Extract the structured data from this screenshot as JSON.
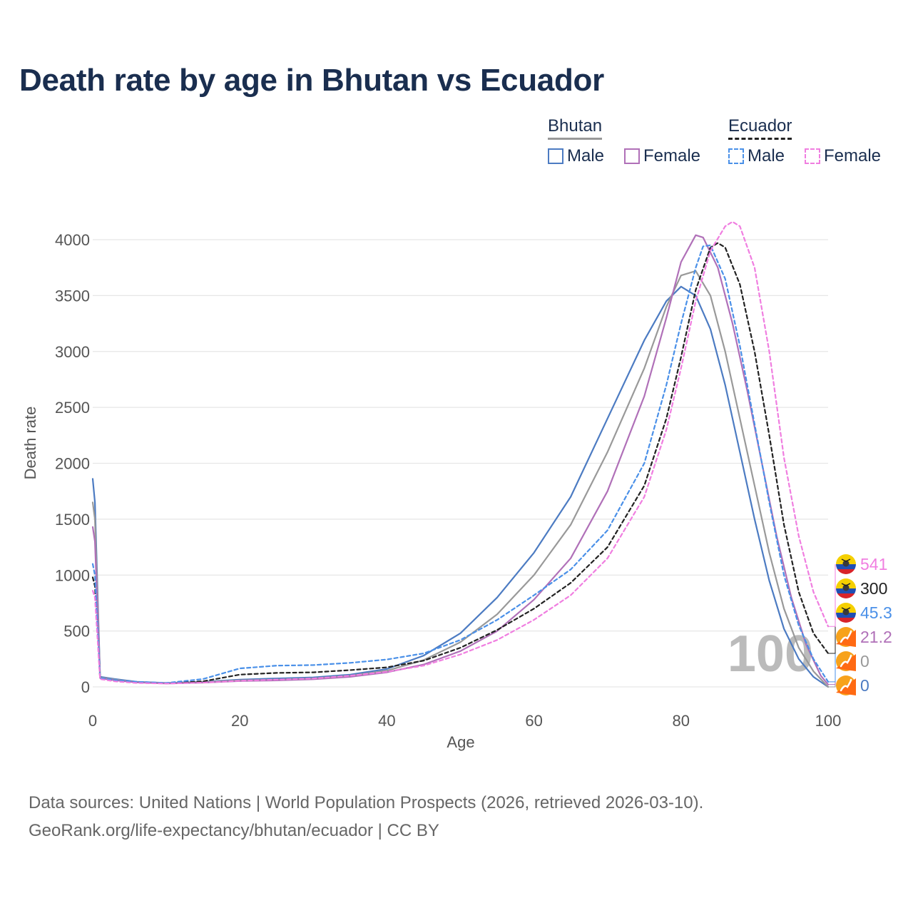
{
  "title": "Death rate by age in Bhutan vs Ecuador",
  "legend": {
    "groups": [
      {
        "name": "Bhutan",
        "items": [
          {
            "label": "Male",
            "color": "#4c7bc2",
            "dash": false
          },
          {
            "label": "Female",
            "color": "#b070b8",
            "dash": false
          }
        ]
      },
      {
        "name": "Ecuador",
        "items": [
          {
            "label": "Male",
            "color": "#4a90e8",
            "dash": true
          },
          {
            "label": "Female",
            "color": "#f07ee0",
            "dash": true
          }
        ]
      }
    ]
  },
  "source": {
    "line1": "Data sources: United Nations | World Population Prospects (2026, retrieved 2026-03-10).",
    "line2": "GeoRank.org/life-expectancy/bhutan/ecuador | CC BY"
  },
  "chart_data": {
    "type": "line",
    "title": "Death rate by age in Bhutan vs Ecuador",
    "xlabel": "Age",
    "ylabel": "Death rate",
    "xlim": [
      0,
      100
    ],
    "ylim": [
      0,
      4000
    ],
    "xticks": [
      0,
      20,
      40,
      60,
      80,
      100
    ],
    "yticks": [
      0,
      500,
      1000,
      1500,
      2000,
      2500,
      3000,
      3500,
      4000
    ],
    "grid": true,
    "watermark": "100",
    "series": [
      {
        "name": "Bhutan Male",
        "color": "#4c7bc2",
        "dash": false,
        "end_label": "0",
        "points": [
          [
            0,
            1860
          ],
          [
            0.3,
            1650
          ],
          [
            1,
            90
          ],
          [
            3,
            70
          ],
          [
            6,
            45
          ],
          [
            10,
            35
          ],
          [
            15,
            45
          ],
          [
            20,
            65
          ],
          [
            25,
            75
          ],
          [
            30,
            85
          ],
          [
            35,
            110
          ],
          [
            40,
            160
          ],
          [
            45,
            280
          ],
          [
            50,
            480
          ],
          [
            55,
            800
          ],
          [
            60,
            1200
          ],
          [
            65,
            1700
          ],
          [
            70,
            2400
          ],
          [
            75,
            3100
          ],
          [
            78,
            3450
          ],
          [
            80,
            3580
          ],
          [
            82,
            3500
          ],
          [
            84,
            3200
          ],
          [
            86,
            2700
          ],
          [
            88,
            2100
          ],
          [
            90,
            1500
          ],
          [
            92,
            950
          ],
          [
            94,
            520
          ],
          [
            96,
            250
          ],
          [
            98,
            90
          ],
          [
            100,
            0
          ]
        ]
      },
      {
        "name": "Bhutan Both",
        "color": "#999999",
        "dash": false,
        "end_label": "0",
        "points": [
          [
            0,
            1650
          ],
          [
            0.3,
            1500
          ],
          [
            1,
            85
          ],
          [
            3,
            65
          ],
          [
            6,
            42
          ],
          [
            10,
            33
          ],
          [
            15,
            42
          ],
          [
            20,
            58
          ],
          [
            25,
            65
          ],
          [
            30,
            75
          ],
          [
            35,
            100
          ],
          [
            40,
            145
          ],
          [
            45,
            240
          ],
          [
            50,
            400
          ],
          [
            55,
            650
          ],
          [
            60,
            1000
          ],
          [
            65,
            1450
          ],
          [
            70,
            2100
          ],
          [
            75,
            2850
          ],
          [
            78,
            3400
          ],
          [
            80,
            3680
          ],
          [
            82,
            3720
          ],
          [
            84,
            3500
          ],
          [
            86,
            3000
          ],
          [
            88,
            2400
          ],
          [
            90,
            1800
          ],
          [
            92,
            1200
          ],
          [
            94,
            700
          ],
          [
            96,
            350
          ],
          [
            98,
            140
          ],
          [
            100,
            0
          ]
        ]
      },
      {
        "name": "Bhutan Female",
        "color": "#b070b8",
        "dash": false,
        "end_label": "21.2",
        "points": [
          [
            0,
            1430
          ],
          [
            0.3,
            1300
          ],
          [
            1,
            80
          ],
          [
            3,
            60
          ],
          [
            6,
            40
          ],
          [
            10,
            30
          ],
          [
            15,
            38
          ],
          [
            20,
            52
          ],
          [
            25,
            58
          ],
          [
            30,
            68
          ],
          [
            35,
            90
          ],
          [
            40,
            130
          ],
          [
            45,
            200
          ],
          [
            50,
            320
          ],
          [
            55,
            500
          ],
          [
            60,
            780
          ],
          [
            65,
            1150
          ],
          [
            70,
            1750
          ],
          [
            75,
            2600
          ],
          [
            78,
            3300
          ],
          [
            80,
            3800
          ],
          [
            82,
            4040
          ],
          [
            83,
            4020
          ],
          [
            85,
            3750
          ],
          [
            87,
            3250
          ],
          [
            89,
            2650
          ],
          [
            91,
            2000
          ],
          [
            93,
            1350
          ],
          [
            95,
            800
          ],
          [
            97,
            380
          ],
          [
            99,
            100
          ],
          [
            100,
            21.2
          ]
        ]
      },
      {
        "name": "Ecuador Both",
        "color": "#222222",
        "dash": true,
        "end_label": "300",
        "points": [
          [
            0,
            980
          ],
          [
            0.3,
            900
          ],
          [
            1,
            75
          ],
          [
            3,
            55
          ],
          [
            6,
            40
          ],
          [
            10,
            32
          ],
          [
            15,
            50
          ],
          [
            20,
            110
          ],
          [
            25,
            125
          ],
          [
            30,
            130
          ],
          [
            35,
            150
          ],
          [
            40,
            175
          ],
          [
            45,
            235
          ],
          [
            50,
            350
          ],
          [
            55,
            510
          ],
          [
            60,
            700
          ],
          [
            65,
            930
          ],
          [
            70,
            1250
          ],
          [
            75,
            1800
          ],
          [
            78,
            2400
          ],
          [
            80,
            2950
          ],
          [
            82,
            3550
          ],
          [
            84,
            3930
          ],
          [
            85,
            3970
          ],
          [
            86,
            3930
          ],
          [
            88,
            3600
          ],
          [
            90,
            3000
          ],
          [
            92,
            2250
          ],
          [
            94,
            1450
          ],
          [
            96,
            850
          ],
          [
            98,
            480
          ],
          [
            100,
            300
          ]
        ]
      },
      {
        "name": "Ecuador Male",
        "color": "#4a90e8",
        "dash": true,
        "end_label": "45.3",
        "points": [
          [
            0,
            1100
          ],
          [
            0.3,
            1000
          ],
          [
            1,
            80
          ],
          [
            3,
            60
          ],
          [
            6,
            45
          ],
          [
            10,
            35
          ],
          [
            15,
            70
          ],
          [
            20,
            165
          ],
          [
            25,
            190
          ],
          [
            30,
            195
          ],
          [
            35,
            215
          ],
          [
            40,
            245
          ],
          [
            45,
            300
          ],
          [
            50,
            420
          ],
          [
            55,
            600
          ],
          [
            60,
            820
          ],
          [
            65,
            1050
          ],
          [
            70,
            1400
          ],
          [
            75,
            2000
          ],
          [
            78,
            2700
          ],
          [
            80,
            3250
          ],
          [
            82,
            3750
          ],
          [
            83,
            3940
          ],
          [
            84,
            3950
          ],
          [
            86,
            3650
          ],
          [
            88,
            3050
          ],
          [
            90,
            2350
          ],
          [
            92,
            1650
          ],
          [
            94,
            1000
          ],
          [
            96,
            550
          ],
          [
            98,
            250
          ],
          [
            100,
            45.3
          ]
        ]
      },
      {
        "name": "Ecuador Female",
        "color": "#f07ee0",
        "dash": true,
        "end_label": "541",
        "points": [
          [
            0,
            860
          ],
          [
            0.3,
            800
          ],
          [
            1,
            70
          ],
          [
            3,
            50
          ],
          [
            6,
            35
          ],
          [
            10,
            30
          ],
          [
            15,
            38
          ],
          [
            20,
            55
          ],
          [
            25,
            65
          ],
          [
            30,
            75
          ],
          [
            35,
            100
          ],
          [
            40,
            135
          ],
          [
            45,
            190
          ],
          [
            50,
            290
          ],
          [
            55,
            420
          ],
          [
            60,
            600
          ],
          [
            65,
            820
          ],
          [
            70,
            1150
          ],
          [
            75,
            1700
          ],
          [
            78,
            2300
          ],
          [
            80,
            2850
          ],
          [
            82,
            3450
          ],
          [
            84,
            3900
          ],
          [
            86,
            4120
          ],
          [
            87,
            4160
          ],
          [
            88,
            4120
          ],
          [
            90,
            3750
          ],
          [
            92,
            3000
          ],
          [
            94,
            2050
          ],
          [
            96,
            1350
          ],
          [
            98,
            850
          ],
          [
            100,
            541
          ]
        ]
      }
    ]
  }
}
